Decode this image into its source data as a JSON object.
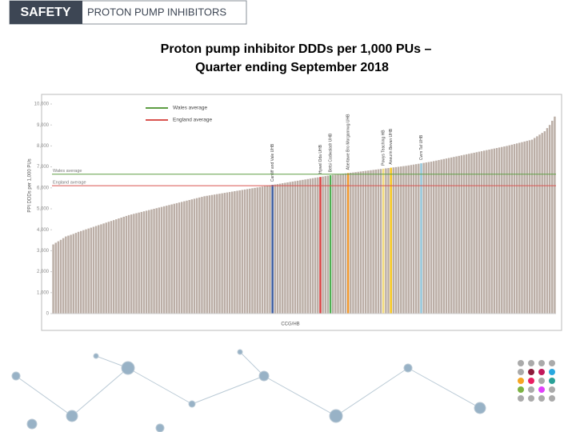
{
  "header": {
    "tag": "SAFETY",
    "topic": "PROTON PUMP INHIBITORS"
  },
  "chart_data": {
    "type": "bar",
    "title": [
      "Proton pump inhibitor DDDs per 1,000 PUs –",
      "Quarter ending September 2018"
    ],
    "x_label": "CCG/HB",
    "y_label": "PPI DDDs per 1,000 PUs",
    "color": "#bbaea6",
    "ylim": [
      0,
      10000
    ],
    "yticks": [
      0,
      {
        "value": 1000,
        "label": "1,000"
      },
      {
        "value": 2000,
        "label": "2,000"
      },
      {
        "value": 3000,
        "label": "3,000"
      },
      {
        "value": 4000,
        "label": "4,000"
      },
      {
        "value": 5000,
        "label": "5,000"
      },
      {
        "value": 6000,
        "label": "6,000"
      },
      {
        "value": 7000,
        "label": "7,000"
      },
      {
        "value": 8000,
        "label": "8,000"
      },
      {
        "value": 9000,
        "label": "9,000"
      },
      {
        "value": 10000,
        "label": "10,000"
      }
    ],
    "reference_lines": [
      {
        "name": "Wales average",
        "value": 6650,
        "color": "#5e9e44"
      },
      {
        "name": "England average",
        "value": 6100,
        "color": "#d9534f"
      }
    ],
    "values": [
      3300,
      3380,
      3450,
      3520,
      3600,
      3680,
      3720,
      3760,
      3800,
      3850,
      3900,
      3940,
      3980,
      4020,
      4060,
      4100,
      4140,
      4180,
      4220,
      4260,
      4300,
      4340,
      4380,
      4420,
      4460,
      4500,
      4540,
      4580,
      4620,
      4660,
      4700,
      4730,
      4760,
      4790,
      4820,
      4850,
      4880,
      4910,
      4940,
      4970,
      5000,
      5030,
      5060,
      5090,
      5120,
      5150,
      5180,
      5210,
      5240,
      5270,
      5300,
      5330,
      5360,
      5390,
      5420,
      5450,
      5480,
      5510,
      5540,
      5570,
      5600,
      5620,
      5640,
      5660,
      5680,
      5700,
      5720,
      5740,
      5760,
      5780,
      5800,
      5820,
      5840,
      5860,
      5880,
      5900,
      5920,
      5940,
      5960,
      5980,
      6000,
      6020,
      6040,
      6060,
      6080,
      6100,
      6120,
      6140,
      6160,
      6180,
      6200,
      6220,
      6240,
      6260,
      6280,
      6300,
      6320,
      6340,
      6360,
      6380,
      6400,
      6420,
      6440,
      6460,
      6480,
      6500,
      6520,
      6540,
      6560,
      6580,
      6600,
      6615,
      6630,
      6645,
      6660,
      6675,
      6690,
      6705,
      6720,
      6735,
      6750,
      6765,
      6780,
      6795,
      6810,
      6825,
      6840,
      6855,
      6870,
      6885,
      6900,
      6915,
      6930,
      6945,
      6960,
      6975,
      6990,
      7005,
      7020,
      7035,
      7050,
      7070,
      7090,
      7110,
      7130,
      7150,
      7170,
      7190,
      7210,
      7230,
      7250,
      7275,
      7300,
      7325,
      7350,
      7375,
      7400,
      7425,
      7450,
      7475,
      7500,
      7525,
      7550,
      7575,
      7600,
      7625,
      7650,
      7675,
      7700,
      7725,
      7750,
      7775,
      7800,
      7825,
      7850,
      7875,
      7900,
      7925,
      7950,
      7975,
      8000,
      8030,
      8060,
      8090,
      8120,
      8150,
      8180,
      8210,
      8240,
      8270,
      8300,
      8380,
      8460,
      8540,
      8620,
      8700,
      8850,
      9000,
      9200,
      9400
    ],
    "categories": [
      null,
      null,
      null,
      null,
      null,
      null,
      null,
      null,
      null,
      null,
      null,
      null,
      null,
      null,
      null,
      null,
      null,
      null,
      null,
      null,
      null,
      null,
      null,
      null,
      null,
      null,
      null,
      null,
      null,
      null,
      null,
      null,
      null,
      null,
      null,
      null,
      null,
      null,
      null,
      null,
      null,
      null,
      null,
      null,
      null,
      null,
      null,
      null,
      null,
      null,
      null,
      null,
      null,
      null,
      null,
      null,
      null,
      null,
      null,
      null,
      null,
      null,
      null,
      null,
      null,
      null,
      null,
      null,
      null,
      null,
      null,
      null,
      null,
      null,
      null,
      null,
      null,
      null,
      null,
      null,
      null,
      null,
      null,
      null,
      null,
      null,
      null,
      "Cardiff and Vale UHB",
      null,
      null,
      null,
      null,
      null,
      null,
      null,
      null,
      null,
      null,
      null,
      null,
      null,
      null,
      null,
      null,
      null,
      null,
      "Hywel Dda UHB",
      null,
      null,
      null,
      "Betsi Cadwaladr UHB",
      null,
      null,
      null,
      null,
      null,
      null,
      "Abertawe Bro Morgannwg UHB",
      null,
      null,
      null,
      null,
      null,
      null,
      null,
      null,
      null,
      null,
      null,
      null,
      null,
      "Powys Teaching HB",
      null,
      null,
      "Aneurin Bevan UHB",
      null,
      null,
      null,
      null,
      null,
      null,
      null,
      null,
      null,
      null,
      null,
      "Cwm Taf UHB",
      null,
      null,
      null,
      null,
      null,
      null,
      null,
      null,
      null,
      null,
      null,
      null,
      null,
      null,
      null,
      null,
      null,
      null,
      null,
      null,
      null,
      null,
      null,
      null,
      null,
      null,
      null,
      null,
      null,
      null,
      null,
      null,
      null,
      null,
      null,
      null,
      null,
      null,
      null,
      null,
      null,
      null,
      null,
      null,
      null,
      null,
      null,
      null,
      null,
      null,
      null,
      null,
      null
    ],
    "colors": [
      null,
      null,
      null,
      null,
      null,
      null,
      null,
      null,
      null,
      null,
      null,
      null,
      null,
      null,
      null,
      null,
      null,
      null,
      null,
      null,
      null,
      null,
      null,
      null,
      null,
      null,
      null,
      null,
      null,
      null,
      null,
      null,
      null,
      null,
      null,
      null,
      null,
      null,
      null,
      null,
      null,
      null,
      null,
      null,
      null,
      null,
      null,
      null,
      null,
      null,
      null,
      null,
      null,
      null,
      null,
      null,
      null,
      null,
      null,
      null,
      null,
      null,
      null,
      null,
      null,
      null,
      null,
      null,
      null,
      null,
      null,
      null,
      null,
      null,
      null,
      null,
      null,
      null,
      null,
      null,
      null,
      null,
      null,
      null,
      null,
      null,
      null,
      "#3a5ba0",
      null,
      null,
      null,
      null,
      null,
      null,
      null,
      null,
      null,
      null,
      null,
      null,
      null,
      null,
      null,
      null,
      null,
      null,
      "#d94040",
      null,
      null,
      null,
      "#4caf50",
      null,
      null,
      null,
      null,
      null,
      null,
      "#f0962a",
      null,
      null,
      null,
      null,
      null,
      null,
      null,
      null,
      null,
      null,
      null,
      null,
      null,
      "#f3dc7c",
      null,
      null,
      "#f5c518",
      null,
      null,
      null,
      null,
      null,
      null,
      null,
      null,
      null,
      null,
      null,
      "#8fc4d8",
      null,
      null,
      null,
      null,
      null,
      null,
      null,
      null,
      null,
      null,
      null,
      null,
      null,
      null,
      null,
      null,
      null,
      null,
      null,
      null,
      null,
      null,
      null,
      null,
      null,
      null,
      null,
      null,
      null,
      null,
      null,
      null,
      null,
      null,
      null,
      null,
      null,
      null,
      null,
      null,
      null,
      null,
      null,
      null,
      null,
      null,
      null,
      null,
      null,
      null,
      null,
      null,
      null
    ]
  }
}
